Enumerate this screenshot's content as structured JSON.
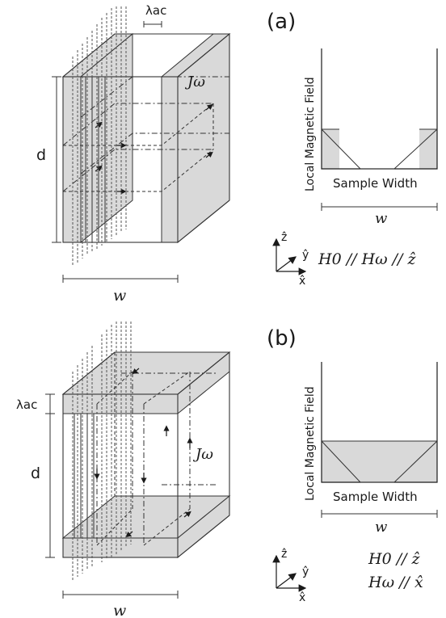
{
  "panel_a": {
    "label": "(a)",
    "lambda": "λac",
    "current": "Jω",
    "d": "d",
    "w": "w",
    "plot": {
      "ylabel": "Local Magnetic Field",
      "xlabel": "Sample Width",
      "w": "w"
    },
    "axes": {
      "z": "ẑ",
      "y": "ŷ",
      "x": "x̂"
    },
    "relation": "H0 // Hω // ẑ"
  },
  "panel_b": {
    "label": "(b)",
    "lambda": "λac",
    "current": "Jω",
    "d": "d",
    "w": "w",
    "plot": {
      "ylabel": "Local Magnetic Field",
      "xlabel": "Sample Width",
      "w": "w"
    },
    "axes": {
      "z": "ẑ",
      "y": "ŷ",
      "x": "x̂"
    },
    "relation_1": "H0 // ẑ",
    "relation_2": "Hω // x̂"
  }
}
